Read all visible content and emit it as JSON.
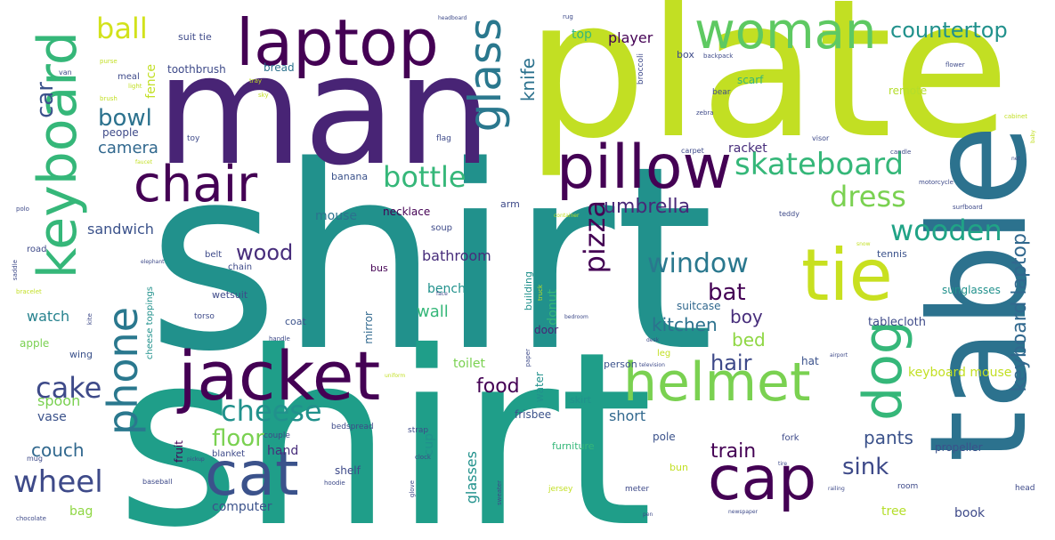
{
  "words": [
    {
      "name": "shirt-1",
      "text": "shirt",
      "color": "#21918c"
    },
    {
      "name": "shirt-2",
      "text": "shirt",
      "color": "#1f9e89"
    },
    {
      "name": "plate",
      "text": "plate",
      "color": "#c2df23"
    },
    {
      "name": "man",
      "text": "man",
      "color": "#482475"
    },
    {
      "name": "table",
      "text": "table",
      "color": "#2c728e"
    },
    {
      "name": "laptop",
      "text": "laptop",
      "color": "#440154"
    },
    {
      "name": "woman",
      "text": "woman",
      "color": "#5ec962"
    },
    {
      "name": "keyboard",
      "text": "keyboard",
      "color": "#35b779"
    },
    {
      "name": "jacket",
      "text": "jacket",
      "color": "#440154"
    },
    {
      "name": "pillow",
      "text": "pillow",
      "color": "#440154"
    },
    {
      "name": "chair",
      "text": "chair",
      "color": "#440154"
    },
    {
      "name": "cat",
      "text": "cat",
      "color": "#3b528b"
    },
    {
      "name": "cap",
      "text": "cap",
      "color": "#440154"
    },
    {
      "name": "helmet",
      "text": "helmet",
      "color": "#7ad151"
    },
    {
      "name": "tie",
      "text": "tie",
      "color": "#c8e020"
    },
    {
      "name": "dog",
      "text": "dog",
      "color": "#35b779"
    },
    {
      "name": "glass",
      "text": "glass",
      "color": "#2a788e"
    },
    {
      "name": "skateboard",
      "text": "skateboard",
      "color": "#35b779"
    },
    {
      "name": "phone",
      "text": "phone",
      "color": "#2a788e"
    },
    {
      "name": "cheese",
      "text": "cheese",
      "color": "#21918c"
    },
    {
      "name": "window",
      "text": "window",
      "color": "#2a788e"
    },
    {
      "name": "wooden",
      "text": "wooden",
      "color": "#20a386"
    },
    {
      "name": "dress",
      "text": "dress",
      "color": "#7ad151"
    },
    {
      "name": "bottle",
      "text": "bottle",
      "color": "#35b779"
    },
    {
      "name": "pizza",
      "text": "pizza",
      "color": "#440154"
    },
    {
      "name": "keyboard-laptop",
      "text": "keyboard laptop",
      "color": "#31688e"
    },
    {
      "name": "wheel",
      "text": "wheel",
      "color": "#3e4a89"
    },
    {
      "name": "cake",
      "text": "cake",
      "color": "#3e4a89"
    },
    {
      "name": "ball",
      "text": "ball",
      "color": "#d2e21b"
    },
    {
      "name": "countertop",
      "text": "countertop",
      "color": "#21918c"
    },
    {
      "name": "car",
      "text": "car",
      "color": "#3b528b"
    },
    {
      "name": "bowl",
      "text": "bowl",
      "color": "#2c728e"
    },
    {
      "name": "camera",
      "text": "camera",
      "color": "#31688e"
    },
    {
      "name": "wood",
      "text": "wood",
      "color": "#472d7b"
    },
    {
      "name": "umbrella",
      "text": "umbrella",
      "color": "#482878"
    },
    {
      "name": "floor",
      "text": "floor",
      "color": "#7ad151"
    },
    {
      "name": "food",
      "text": "food",
      "color": "#440154"
    },
    {
      "name": "hair",
      "text": "hair",
      "color": "#3e4a89"
    },
    {
      "name": "bat",
      "text": "bat",
      "color": "#440154"
    },
    {
      "name": "kitchen",
      "text": "kitchen",
      "color": "#2c728e"
    },
    {
      "name": "boy",
      "text": "boy",
      "color": "#472d7b"
    },
    {
      "name": "bed",
      "text": "bed",
      "color": "#8fd744"
    },
    {
      "name": "sink",
      "text": "sink",
      "color": "#3e4a89"
    },
    {
      "name": "train",
      "text": "train",
      "color": "#440154"
    },
    {
      "name": "pants",
      "text": "pants",
      "color": "#3b528b"
    },
    {
      "name": "couch",
      "text": "couch",
      "color": "#31688e"
    },
    {
      "name": "knife",
      "text": "knife",
      "color": "#2c728e"
    },
    {
      "name": "player",
      "text": "player",
      "color": "#440154"
    },
    {
      "name": "top",
      "text": "top",
      "color": "#35b779"
    },
    {
      "name": "bathroom",
      "text": "bathroom",
      "color": "#472d7b"
    },
    {
      "name": "wall",
      "text": "wall",
      "color": "#35b779"
    },
    {
      "name": "bench",
      "text": "bench",
      "color": "#21918c"
    },
    {
      "name": "sandwich",
      "text": "sandwich",
      "color": "#3b528b"
    },
    {
      "name": "mouse",
      "text": "mouse",
      "color": "#2c728e"
    },
    {
      "name": "watch",
      "text": "watch",
      "color": "#26828e"
    },
    {
      "name": "spoon",
      "text": "spoon",
      "color": "#7ad151"
    },
    {
      "name": "vase",
      "text": "vase",
      "color": "#3b528b"
    },
    {
      "name": "bag",
      "text": "bag",
      "color": "#8fd744"
    },
    {
      "name": "computer",
      "text": "computer",
      "color": "#3b528b"
    },
    {
      "name": "short",
      "text": "short",
      "color": "#31688e"
    },
    {
      "name": "glasses",
      "text": "glasses",
      "color": "#21918c"
    },
    {
      "name": "cup",
      "text": "cup",
      "color": "#21918c"
    },
    {
      "name": "toilet",
      "text": "toilet",
      "color": "#7ad151"
    },
    {
      "name": "hand",
      "text": "hand",
      "color": "#472d7b"
    },
    {
      "name": "shelf",
      "text": "shelf",
      "color": "#3e4a89"
    },
    {
      "name": "fence",
      "text": "fence",
      "color": "#c2df23"
    },
    {
      "name": "tree",
      "text": "tree",
      "color": "#b5de2b"
    },
    {
      "name": "book",
      "text": "book",
      "color": "#3e4a89"
    },
    {
      "name": "keyboard-mouse",
      "text": "keyboard mouse",
      "color": "#c2df23"
    },
    {
      "name": "sunglasses",
      "text": "sunglasses",
      "color": "#21918c"
    },
    {
      "name": "tablecloth",
      "text": "tablecloth",
      "color": "#3e4a89"
    },
    {
      "name": "donut",
      "text": "donut",
      "color": "#35b779"
    },
    {
      "name": "suitcase",
      "text": "suitcase",
      "color": "#31688e"
    },
    {
      "name": "racket",
      "text": "racket",
      "color": "#472d7b"
    },
    {
      "name": "scarf",
      "text": "scarf",
      "color": "#35b779"
    },
    {
      "name": "people",
      "text": "people",
      "color": "#3e4a89"
    },
    {
      "name": "apple",
      "text": "apple",
      "color": "#7ad151"
    },
    {
      "name": "door",
      "text": "door",
      "color": "#482475"
    },
    {
      "name": "hat",
      "text": "hat",
      "color": "#3b528b"
    },
    {
      "name": "water",
      "text": "water",
      "color": "#21918c"
    },
    {
      "name": "frisbee",
      "text": "frisbee",
      "color": "#3b528b"
    },
    {
      "name": "pole",
      "text": "pole",
      "color": "#3b528b"
    },
    {
      "name": "bread",
      "text": "bread",
      "color": "#2c728e"
    },
    {
      "name": "necklace",
      "text": "necklace",
      "color": "#440154"
    },
    {
      "name": "remote",
      "text": "remote",
      "color": "#b5de2b"
    },
    {
      "name": "mirror",
      "text": "mirror",
      "color": "#31688e"
    },
    {
      "name": "toothbrush",
      "text": "toothbrush",
      "color": "#3e4a89"
    },
    {
      "name": "wing",
      "text": "wing",
      "color": "#3b528b"
    },
    {
      "name": "fruit",
      "text": "fruit",
      "color": "#440154"
    },
    {
      "name": "person",
      "text": "person",
      "color": "#3b528b"
    },
    {
      "name": "skirt",
      "text": "skirt",
      "color": "#21918c"
    },
    {
      "name": "suit-tie",
      "text": "suit tie",
      "color": "#3e4a89"
    },
    {
      "name": "box",
      "text": "box",
      "color": "#3e4a89"
    },
    {
      "name": "banana",
      "text": "banana",
      "color": "#3b528b"
    },
    {
      "name": "arm",
      "text": "arm",
      "color": "#3e4a89"
    },
    {
      "name": "soup",
      "text": "soup",
      "color": "#3e4a89"
    },
    {
      "name": "building",
      "text": "building",
      "color": "#21918c"
    },
    {
      "name": "bus",
      "text": "bus",
      "color": "#440154"
    },
    {
      "name": "tennis",
      "text": "tennis",
      "color": "#3b528b"
    },
    {
      "name": "wetsuit",
      "text": "wetsuit",
      "color": "#3e4a89"
    },
    {
      "name": "coat",
      "text": "coat",
      "color": "#3b528b"
    },
    {
      "name": "belt",
      "text": "belt",
      "color": "#3e4a89"
    },
    {
      "name": "chain",
      "text": "chain",
      "color": "#3e4a89"
    },
    {
      "name": "road",
      "text": "road",
      "color": "#3e4a89"
    },
    {
      "name": "cheese-toppings",
      "text": "cheese toppings",
      "color": "#21918c"
    },
    {
      "name": "leg",
      "text": "leg",
      "color": "#c2df23"
    },
    {
      "name": "fork",
      "text": "fork",
      "color": "#3e4a89"
    },
    {
      "name": "bun",
      "text": "bun",
      "color": "#c2df23"
    },
    {
      "name": "propeller",
      "text": "propeller",
      "color": "#3b528b"
    },
    {
      "name": "furniture",
      "text": "furniture",
      "color": "#35b779"
    },
    {
      "name": "blanket",
      "text": "blanket",
      "color": "#3e4a89"
    },
    {
      "name": "couple",
      "text": "couple",
      "color": "#3e4a89"
    },
    {
      "name": "strap",
      "text": "strap",
      "color": "#3e4a89"
    },
    {
      "name": "bedspread",
      "text": "bedspread",
      "color": "#3e4a89"
    },
    {
      "name": "mug",
      "text": "mug",
      "color": "#3e4a89"
    },
    {
      "name": "baseball",
      "text": "baseball",
      "color": "#3e4a89"
    },
    {
      "name": "meal",
      "text": "meal",
      "color": "#3e4a89"
    },
    {
      "name": "van",
      "text": "van",
      "color": "#3e4a89"
    },
    {
      "name": "purse",
      "text": "purse",
      "color": "#c2df23"
    },
    {
      "name": "light",
      "text": "light",
      "color": "#c2df23"
    },
    {
      "name": "brush",
      "text": "brush",
      "color": "#c2df23"
    },
    {
      "name": "tray",
      "text": "tray",
      "color": "#c2df23"
    },
    {
      "name": "sky",
      "text": "sky",
      "color": "#c2df23"
    },
    {
      "name": "toy",
      "text": "toy",
      "color": "#3e4a89"
    },
    {
      "name": "flag",
      "text": "flag",
      "color": "#3e4a89"
    },
    {
      "name": "faucet",
      "text": "faucet",
      "color": "#c2df23"
    },
    {
      "name": "broccoli",
      "text": "broccoli",
      "color": "#3e4a89"
    },
    {
      "name": "backpack",
      "text": "backpack",
      "color": "#3e4a89"
    },
    {
      "name": "bear",
      "text": "bear",
      "color": "#3e4a89"
    },
    {
      "name": "zebra",
      "text": "zebra",
      "color": "#3e4a89"
    },
    {
      "name": "carpet",
      "text": "carpet",
      "color": "#3e4a89"
    },
    {
      "name": "visor",
      "text": "visor",
      "color": "#3e4a89"
    },
    {
      "name": "candle",
      "text": "candle",
      "color": "#3e4a89"
    },
    {
      "name": "motorcycle",
      "text": "motorcycle",
      "color": "#3e4a89"
    },
    {
      "name": "teddy",
      "text": "teddy",
      "color": "#3e4a89"
    },
    {
      "name": "surfboard",
      "text": "surfboard",
      "color": "#3e4a89"
    },
    {
      "name": "cabinet",
      "text": "cabinet",
      "color": "#c2df23"
    },
    {
      "name": "flower",
      "text": "flower",
      "color": "#3e4a89"
    },
    {
      "name": "headboard",
      "text": "headboard",
      "color": "#3e4a89"
    },
    {
      "name": "rug",
      "text": "rug",
      "color": "#3e4a89"
    },
    {
      "name": "clock",
      "text": "clock",
      "color": "#3e4a89"
    },
    {
      "name": "glove",
      "text": "glove",
      "color": "#3e4a89"
    },
    {
      "name": "hoodie",
      "text": "hoodie",
      "color": "#3e4a89"
    },
    {
      "name": "sweater",
      "text": "sweater",
      "color": "#3e4a89"
    },
    {
      "name": "jersey",
      "text": "jersey",
      "color": "#c2df23"
    },
    {
      "name": "meter",
      "text": "meter",
      "color": "#3e4a89"
    },
    {
      "name": "pen",
      "text": "pen",
      "color": "#3e4a89"
    },
    {
      "name": "room",
      "text": "room",
      "color": "#3e4a89"
    },
    {
      "name": "head",
      "text": "head",
      "color": "#3e4a89"
    },
    {
      "name": "newspaper",
      "text": "newspaper",
      "color": "#3e4a89"
    },
    {
      "name": "pickup",
      "text": "pickup",
      "color": "#3e4a89"
    },
    {
      "name": "chocolate",
      "text": "chocolate",
      "color": "#3e4a89"
    },
    {
      "name": "handle",
      "text": "handle",
      "color": "#3e4a89"
    },
    {
      "name": "torso",
      "text": "torso",
      "color": "#3e4a89"
    },
    {
      "name": "television",
      "text": "television",
      "color": "#3e4a89"
    },
    {
      "name": "airport",
      "text": "airport",
      "color": "#3e4a89"
    },
    {
      "name": "uniform",
      "text": "uniform",
      "color": "#c2df23"
    },
    {
      "name": "paper",
      "text": "paper",
      "color": "#3e4a89"
    },
    {
      "name": "truck",
      "text": "truck",
      "color": "#c2df23"
    },
    {
      "name": "face",
      "text": "face",
      "color": "#3e4a89"
    },
    {
      "name": "bedroom",
      "text": "bedroom",
      "color": "#3e4a89"
    },
    {
      "name": "container",
      "text": "container",
      "color": "#c2df23"
    },
    {
      "name": "elephant",
      "text": "elephant",
      "color": "#3e4a89"
    },
    {
      "name": "bracelet",
      "text": "bracelet",
      "color": "#c2df23"
    },
    {
      "name": "saddle",
      "text": "saddle",
      "color": "#3e4a89"
    },
    {
      "name": "polo",
      "text": "polo",
      "color": "#3e4a89"
    },
    {
      "name": "kite",
      "text": "kite",
      "color": "#3e4a89"
    },
    {
      "name": "desk",
      "text": "desk",
      "color": "#3e4a89"
    },
    {
      "name": "snow",
      "text": "snow",
      "color": "#c2df23"
    },
    {
      "name": "net",
      "text": "net",
      "color": "#3e4a89"
    },
    {
      "name": "baby",
      "text": "baby",
      "color": "#c2df23"
    },
    {
      "name": "tire",
      "text": "tire",
      "color": "#3e4a89"
    },
    {
      "name": "railing",
      "text": "railing",
      "color": "#3e4a89"
    }
  ]
}
